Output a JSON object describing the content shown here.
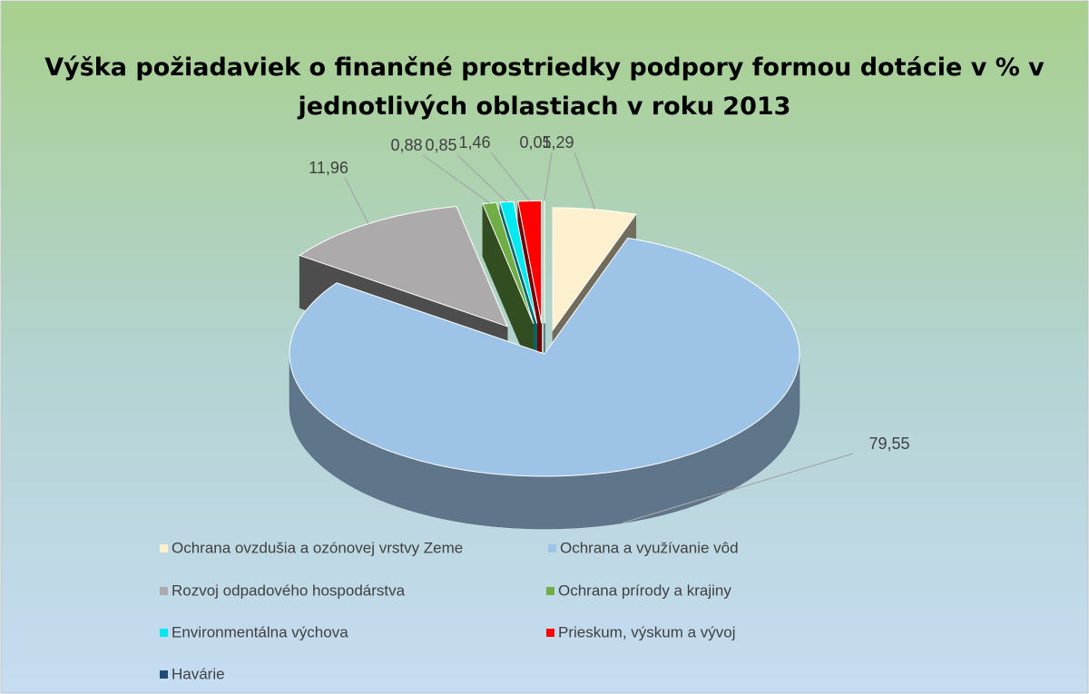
{
  "chart_data": {
    "type": "pie3d",
    "title": "Výška požiadaviek o finančné prostriedky podpory formou dotácie v % v jednotlivých oblastiach v roku 2013",
    "categories": [
      "Ochrana ovzdušia a ozónovej vrstvy Zeme",
      "Ochrana a využívanie vôd",
      "Rozvoj odpadového hospodárstva",
      "Ochrana prírody a krajiny",
      "Environmentálna výchova",
      "Prieskum, výskum a vývoj",
      "Havárie"
    ],
    "values": [
      5.29,
      79.55,
      11.96,
      0.88,
      0.85,
      1.46,
      0.01
    ],
    "value_labels": [
      "5,29",
      "79,55",
      "11,96",
      "0,88",
      "0,85",
      "1,46",
      "0,01"
    ],
    "colors": [
      "#fdf0cf",
      "#9dc3e6",
      "#acaaaa",
      "#70ad47",
      "#00e8f0",
      "#ff0000",
      "#1f4e79"
    ],
    "legend": "bottom"
  }
}
